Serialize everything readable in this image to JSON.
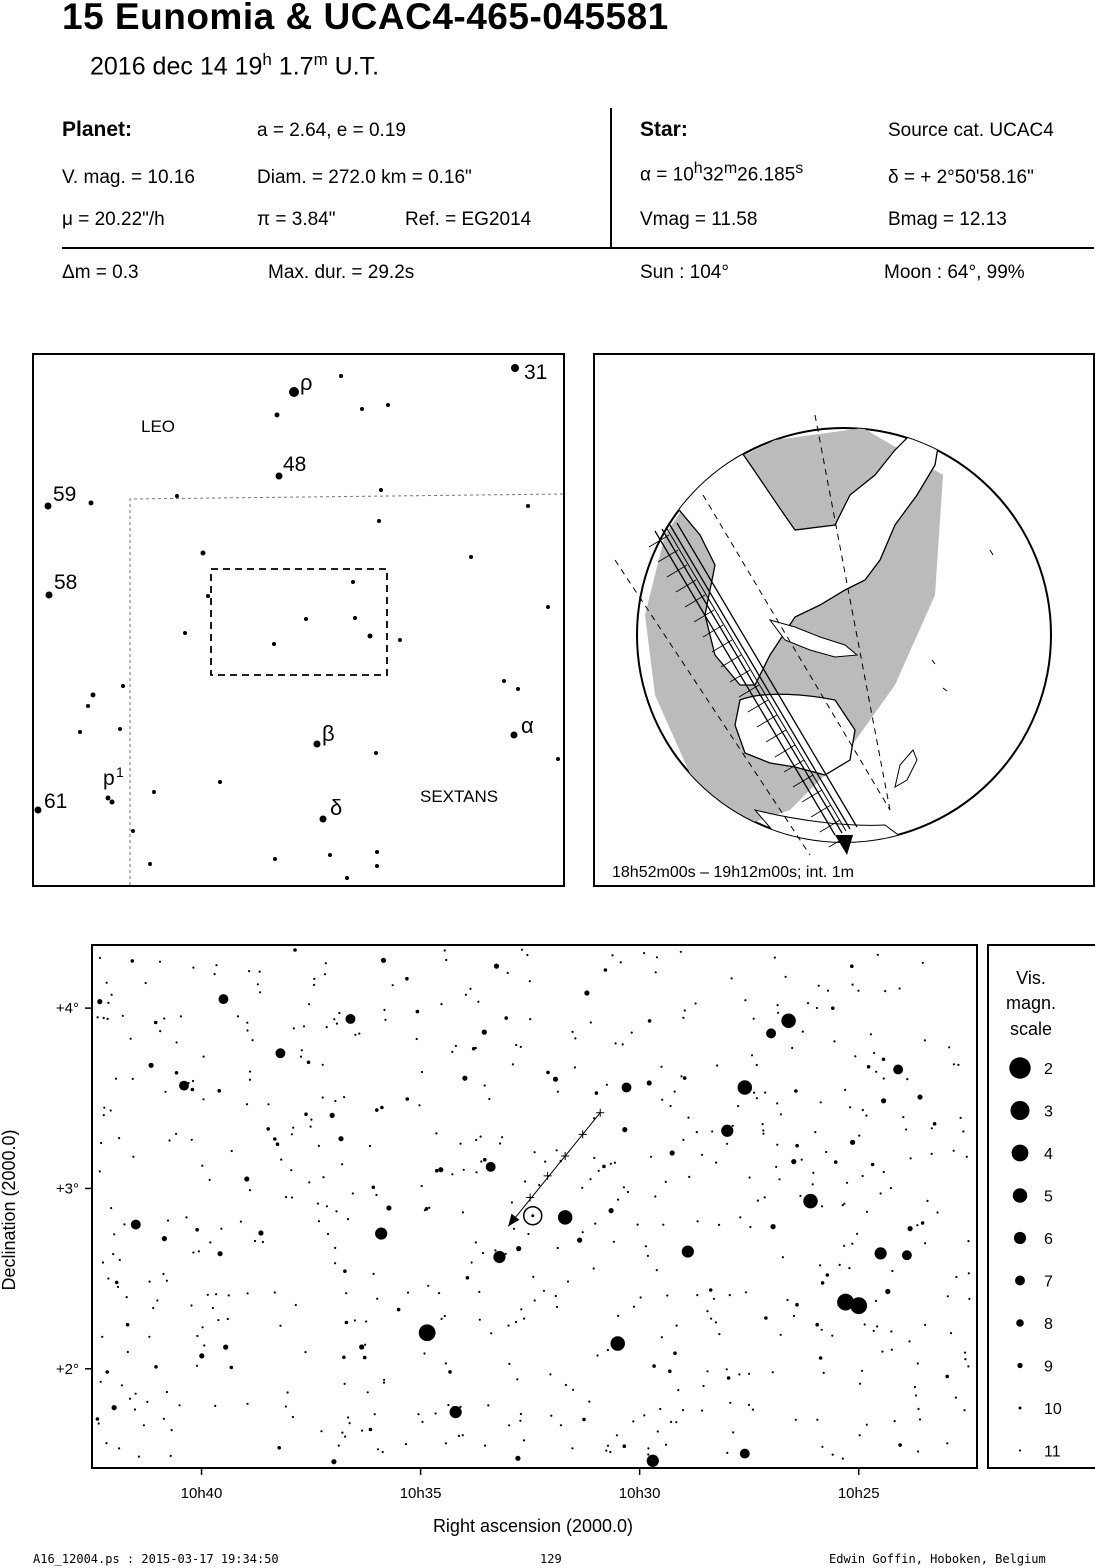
{
  "header": {
    "title": "15 Eunomia  &  UCAC4-465-045581",
    "date_main": "2016 dec 14  19",
    "date_h": "h",
    "date_min": " 1.7",
    "date_m": "m",
    "date_ut": " U.T."
  },
  "planet": {
    "heading": "Planet:",
    "orbit": "a = 2.64, e = 0.19",
    "vmag": "V. mag. = 10.16",
    "diam": "Diam. = 272.0 km = 0.16\"",
    "mu": "μ =  20.22\"/h",
    "pi": "π =  3.84\"",
    "ref": "Ref. = EG2014"
  },
  "star": {
    "heading": "Star:",
    "source": "Source cat.  UCAC4",
    "alpha_pre": "α = 10",
    "alpha_h": "h",
    "alpha_mid": "32",
    "alpha_m": "m",
    "alpha_sec": "26.185",
    "alpha_s": "s",
    "delta": "δ = + 2°50'58.16\"",
    "vmag": "Vmag = 11.58",
    "bmag": "Bmag = 12.13"
  },
  "summary": {
    "dm": "Δm = 0.3",
    "maxdur": "Max. dur. = 29.2s",
    "sun": "Sun : 104°",
    "moon": "Moon :  64°, 99%"
  },
  "finder": {
    "labels": [
      "LEO",
      "SEXTANS",
      "31",
      "ρ",
      "48",
      "59",
      "58",
      "β",
      "α",
      "p",
      "1",
      "61",
      "δ"
    ]
  },
  "globe": {
    "caption": "18h52m00s – 19h12m00s; int.  1m"
  },
  "footer": {
    "left": "A16_12004.ps : 2015-03-17 19:34:50",
    "center": "129",
    "right": "Edwin Goffin, Hoboken, Belgium"
  },
  "chart_data": {
    "type": "scatter",
    "xlabel": "Right ascension (2000.0)",
    "ylabel": "Declination (2000.0)",
    "x_ticks": [
      "10h40",
      "10h35",
      "10h30",
      "10h25"
    ],
    "y_ticks": [
      "+4°",
      "+3°",
      "+2°"
    ],
    "x_tick_values_min": [
      640,
      635,
      630,
      625
    ],
    "y_tick_values_deg": [
      4,
      3,
      2
    ],
    "xlim_min": [
      642.5,
      622.3
    ],
    "ylim_deg": [
      1.45,
      4.35
    ],
    "x_reversed": true,
    "target": {
      "ra_min": 632.44,
      "dec_deg": 2.849
    },
    "path": [
      [
        630.9,
        3.42
      ],
      [
        631.3,
        3.3
      ],
      [
        631.7,
        3.18
      ],
      [
        632.1,
        3.07
      ],
      [
        632.5,
        2.95
      ],
      [
        633.0,
        2.79
      ]
    ],
    "bright_stars": [
      {
        "ra": 634.85,
        "dec": 2.2,
        "mag": 4
      },
      {
        "ra": 633.2,
        "dec": 2.62,
        "mag": 6
      },
      {
        "ra": 631.7,
        "dec": 2.84,
        "mag": 5
      },
      {
        "ra": 630.5,
        "dec": 2.14,
        "mag": 5
      },
      {
        "ra": 626.1,
        "dec": 2.93,
        "mag": 5
      },
      {
        "ra": 627.6,
        "dec": 3.56,
        "mag": 5
      },
      {
        "ra": 626.6,
        "dec": 3.93,
        "mag": 5
      },
      {
        "ra": 625.3,
        "dec": 2.37,
        "mag": 4
      },
      {
        "ra": 625.0,
        "dec": 2.35,
        "mag": 4
      },
      {
        "ra": 629.7,
        "dec": 1.49,
        "mag": 6
      },
      {
        "ra": 630.3,
        "dec": 3.56,
        "mag": 7
      },
      {
        "ra": 628.9,
        "dec": 2.65,
        "mag": 6
      },
      {
        "ra": 628.0,
        "dec": 3.32,
        "mag": 6
      },
      {
        "ra": 634.2,
        "dec": 1.76,
        "mag": 6
      },
      {
        "ra": 635.9,
        "dec": 2.75,
        "mag": 6
      },
      {
        "ra": 624.5,
        "dec": 2.64,
        "mag": 6
      },
      {
        "ra": 624.1,
        "dec": 3.66,
        "mag": 7
      },
      {
        "ra": 636.6,
        "dec": 3.94,
        "mag": 7
      },
      {
        "ra": 639.5,
        "dec": 4.05,
        "mag": 7
      },
      {
        "ra": 641.5,
        "dec": 2.8,
        "mag": 7
      },
      {
        "ra": 627.6,
        "dec": 1.53,
        "mag": 7
      },
      {
        "ra": 633.4,
        "dec": 3.12,
        "mag": 7
      },
      {
        "ra": 638.2,
        "dec": 3.75,
        "mag": 7
      },
      {
        "ra": 627.0,
        "dec": 3.86,
        "mag": 7
      },
      {
        "ra": 640.4,
        "dec": 3.57,
        "mag": 7
      },
      {
        "ra": 623.9,
        "dec": 2.63,
        "mag": 7
      }
    ],
    "legend": {
      "title": [
        "Vis.",
        "magn.",
        "scale"
      ],
      "mags": [
        "2",
        "3",
        "4",
        "5",
        "6",
        "7",
        "8",
        "9",
        "10",
        "11"
      ]
    }
  }
}
